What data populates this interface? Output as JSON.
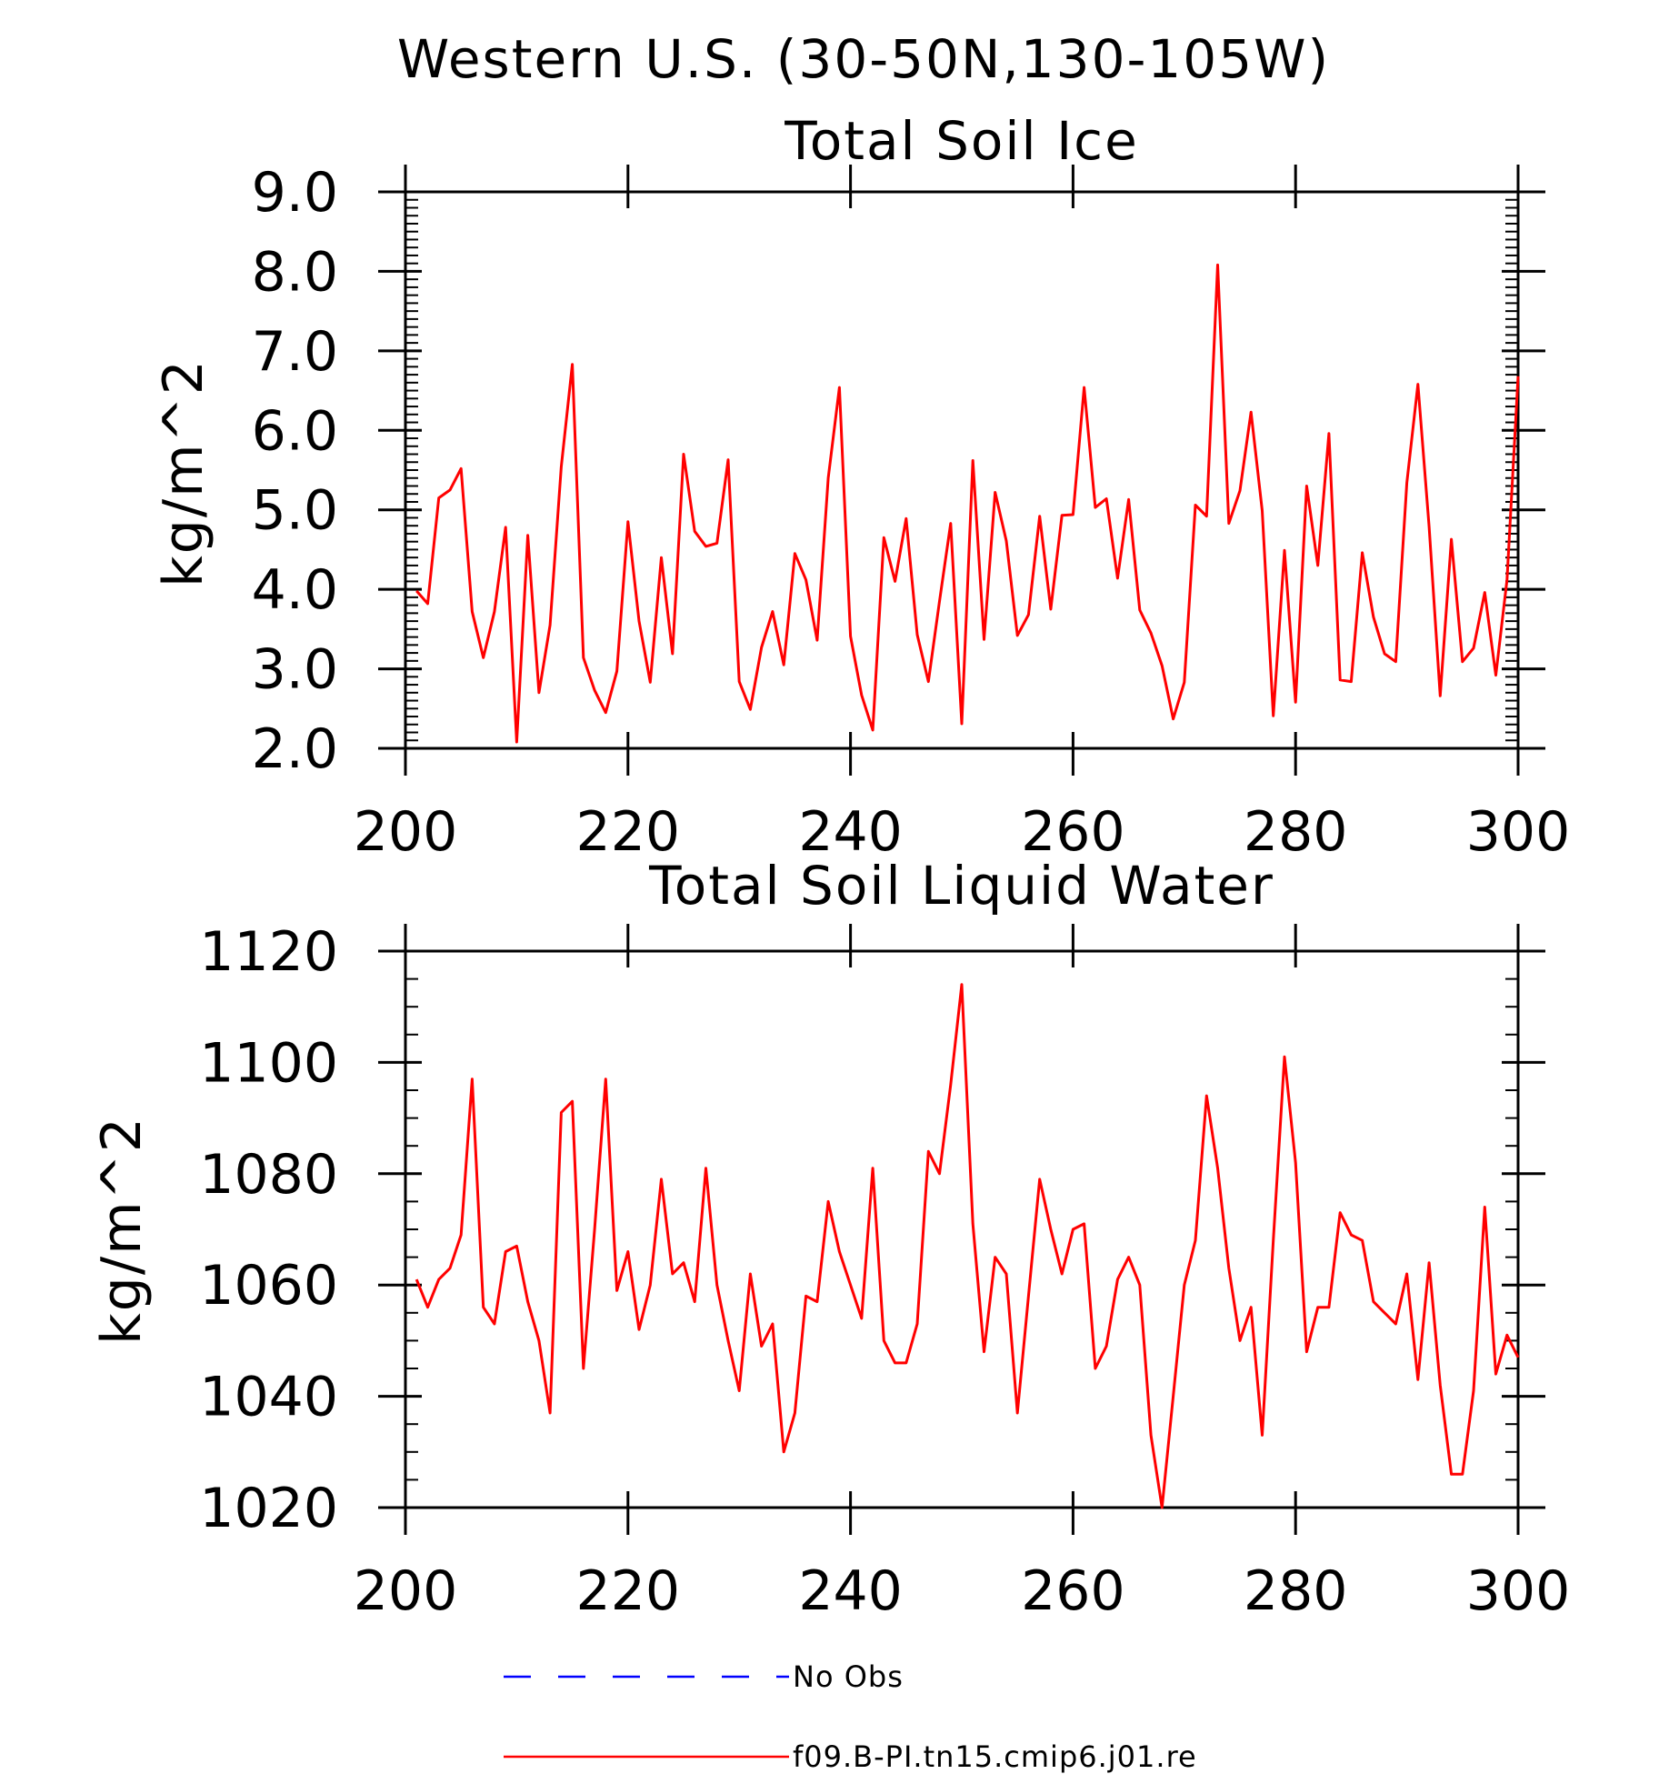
{
  "page_title": "Western U.S. (30-50N,130-105W)",
  "colors": {
    "model": "#ff0000",
    "obs": "#0000ff",
    "axis": "#000000"
  },
  "legend": {
    "placement": "bottom",
    "obs_label": "No Obs",
    "model_label": "f09.B-PI.tn15.cmip6.j01.re"
  },
  "chart_data": [
    {
      "type": "line",
      "title": "Total Soil Ice",
      "ylabel": "kg/m^2",
      "xlim": [
        200,
        300
      ],
      "ylim": [
        2.0,
        9.0
      ],
      "xticks": [
        200,
        220,
        240,
        260,
        280,
        300
      ],
      "yticks": [
        "2.0",
        "3.0",
        "4.0",
        "5.0",
        "6.0",
        "7.0",
        "8.0",
        "9.0"
      ],
      "grid": false,
      "x_start": 201,
      "series": [
        {
          "name": "f09.B-PI.tn15.cmip6.j01.re",
          "values": [
            3.98,
            3.82,
            5.15,
            5.25,
            5.52,
            3.72,
            3.14,
            3.72,
            4.78,
            2.08,
            4.68,
            2.7,
            3.55,
            5.54,
            6.83,
            3.14,
            2.73,
            2.45,
            2.97,
            4.85,
            3.6,
            2.83,
            4.4,
            3.19,
            5.7,
            4.73,
            4.54,
            4.58,
            5.63,
            2.84,
            2.49,
            3.27,
            3.72,
            3.05,
            4.45,
            4.12,
            3.36,
            5.4,
            6.54,
            3.41,
            2.67,
            2.23,
            4.65,
            4.1,
            4.89,
            3.43,
            2.84,
            3.85,
            4.83,
            2.31,
            5.62,
            3.37,
            5.22,
            4.61,
            3.42,
            3.68,
            4.92,
            3.75,
            4.93,
            4.94,
            6.54,
            5.03,
            5.14,
            4.14,
            5.13,
            3.74,
            3.45,
            3.04,
            2.37,
            2.83,
            5.06,
            4.92,
            8.08,
            4.83,
            5.24,
            6.23,
            4.99,
            2.41,
            4.49,
            2.58,
            5.3,
            4.3,
            5.96,
            2.86,
            2.84,
            4.46,
            3.65,
            3.19,
            3.09,
            5.34,
            6.58,
            4.79,
            2.66,
            4.63,
            3.09,
            3.26,
            3.96,
            2.92,
            4.12,
            6.68
          ]
        }
      ]
    },
    {
      "type": "line",
      "title": "Total Soil Liquid Water",
      "ylabel": "kg/m^2",
      "xlim": [
        200,
        300
      ],
      "ylim": [
        1020,
        1120
      ],
      "xticks": [
        200,
        220,
        240,
        260,
        280,
        300
      ],
      "yticks": [
        "1020",
        "1040",
        "1060",
        "1080",
        "1100",
        "1120"
      ],
      "grid": false,
      "x_start": 201,
      "series": [
        {
          "name": "f09.B-PI.tn15.cmip6.j01.re",
          "values": [
            1061,
            1056,
            1061,
            1063,
            1069,
            1097,
            1056,
            1053,
            1066,
            1067,
            1057,
            1050,
            1037,
            1091,
            1093,
            1045,
            1070,
            1097,
            1059,
            1066,
            1052,
            1060,
            1079,
            1062,
            1064,
            1057,
            1081,
            1060,
            1050,
            1041,
            1062,
            1049,
            1053,
            1030,
            1037,
            1058,
            1057,
            1075,
            1066,
            1060,
            1054,
            1081,
            1050,
            1046,
            1046,
            1053,
            1084,
            1080,
            1096,
            1114,
            1071,
            1048,
            1065,
            1062,
            1037,
            1058,
            1079,
            1070,
            1062,
            1070,
            1071,
            1045,
            1049,
            1061,
            1065,
            1060,
            1033,
            1020,
            1040,
            1060,
            1068,
            1094,
            1081,
            1063,
            1050,
            1056,
            1033,
            1068,
            1101,
            1082,
            1048,
            1056,
            1056,
            1073,
            1069,
            1068,
            1057,
            1055,
            1053,
            1062,
            1043,
            1064,
            1042,
            1026,
            1026,
            1041,
            1074,
            1044,
            1051,
            1047
          ]
        }
      ]
    }
  ]
}
